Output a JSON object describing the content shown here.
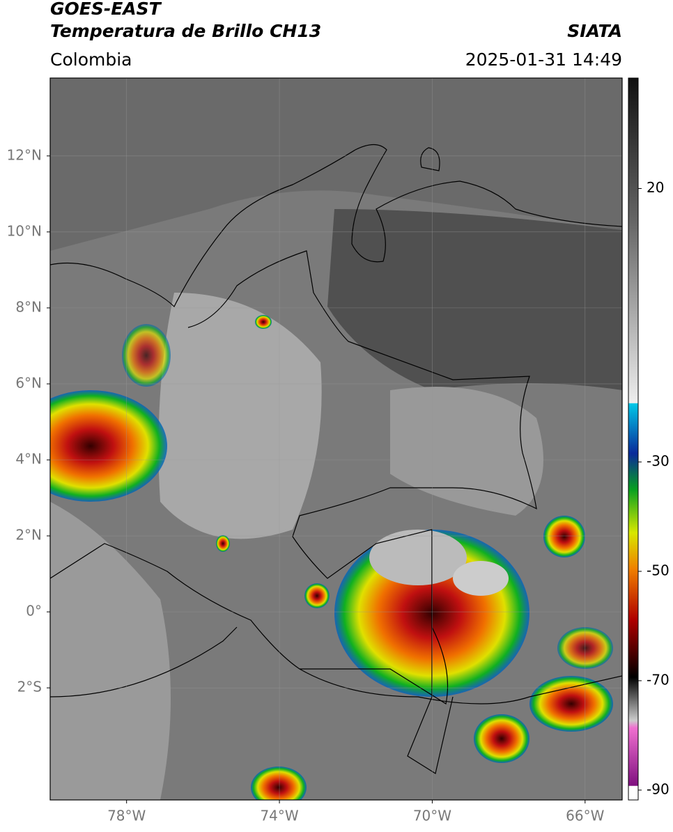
{
  "header": {
    "title": "GOES-EAST",
    "subtitle": "Temperatura de Brillo CH13",
    "agency": "SIATA",
    "region": "Colombia",
    "datetime": "2025-01-31 14:49"
  },
  "map": {
    "latlim": [
      -4.95,
      14.05
    ],
    "lonlim": [
      -80,
      -65.03
    ],
    "latticks": [
      {
        "value": 12,
        "label": "12°N"
      },
      {
        "value": 10,
        "label": "10°N"
      },
      {
        "value": 8,
        "label": "8°N"
      },
      {
        "value": 6,
        "label": "6°N"
      },
      {
        "value": 4,
        "label": "4°N"
      },
      {
        "value": 2,
        "label": "2°N"
      },
      {
        "value": 0,
        "label": "0°"
      },
      {
        "value": -2,
        "label": "2°S"
      }
    ],
    "lonticks": [
      {
        "value": -78,
        "label": "78°W"
      },
      {
        "value": -74,
        "label": "74°W"
      },
      {
        "value": -70,
        "label": "70°W"
      },
      {
        "value": -66,
        "label": "66°W"
      }
    ],
    "grid": true
  },
  "colorbar": {
    "lim": [
      -91.8,
      40.2
    ],
    "ticks": [
      20,
      -30,
      -50,
      -70,
      -90
    ]
  }
}
